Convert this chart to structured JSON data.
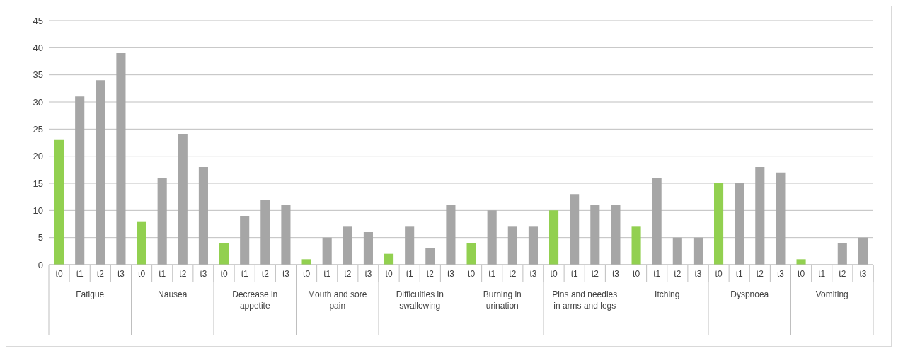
{
  "chart_data": {
    "type": "bar",
    "categories": [
      "t0",
      "t1",
      "t2",
      "t3",
      "t0",
      "t1",
      "t2",
      "t3",
      "t0",
      "t1",
      "t2",
      "t3",
      "t0",
      "t1",
      "t2",
      "t3",
      "t0",
      "t1",
      "t2",
      "t3",
      "t0",
      "t1",
      "t2",
      "t3",
      "t0",
      "t1",
      "t2",
      "t3",
      "t0",
      "t1",
      "t2",
      "t3",
      "t0",
      "t1",
      "t2",
      "t3",
      "t0",
      "t1",
      "t2",
      "t3"
    ],
    "values": [
      23,
      31,
      34,
      39,
      8,
      16,
      24,
      18,
      4,
      9,
      12,
      11,
      1,
      5,
      7,
      6,
      2,
      7,
      3,
      11,
      4,
      10,
      7,
      7,
      10,
      13,
      11,
      11,
      7,
      16,
      5,
      5,
      15,
      15,
      18,
      17,
      1,
      0,
      4,
      5
    ],
    "colors": [
      "#92d050",
      "#a6a6a6",
      "#a6a6a6",
      "#a6a6a6",
      "#92d050",
      "#a6a6a6",
      "#a6a6a6",
      "#a6a6a6",
      "#92d050",
      "#a6a6a6",
      "#a6a6a6",
      "#a6a6a6",
      "#92d050",
      "#a6a6a6",
      "#a6a6a6",
      "#a6a6a6",
      "#92d050",
      "#a6a6a6",
      "#a6a6a6",
      "#a6a6a6",
      "#92d050",
      "#a6a6a6",
      "#a6a6a6",
      "#a6a6a6",
      "#92d050",
      "#a6a6a6",
      "#a6a6a6",
      "#a6a6a6",
      "#92d050",
      "#a6a6a6",
      "#a6a6a6",
      "#a6a6a6",
      "#92d050",
      "#a6a6a6",
      "#a6a6a6",
      "#a6a6a6",
      "#92d050",
      "#a6a6a6",
      "#a6a6a6",
      "#a6a6a6"
    ],
    "annotations": [
      "Fatigue",
      "Nausea",
      "Decrease in appetite",
      "Mouth and sore pain",
      "Difficulties in swallowing",
      "Burning in urination",
      "Pins and needles in arms and legs",
      "Itching",
      "Dyspnoea",
      "Vomiting"
    ],
    "ylim": [
      0,
      45
    ],
    "yticks": [
      0,
      5,
      10,
      15,
      20,
      25,
      30,
      35,
      40,
      45
    ],
    "grid": "y"
  }
}
